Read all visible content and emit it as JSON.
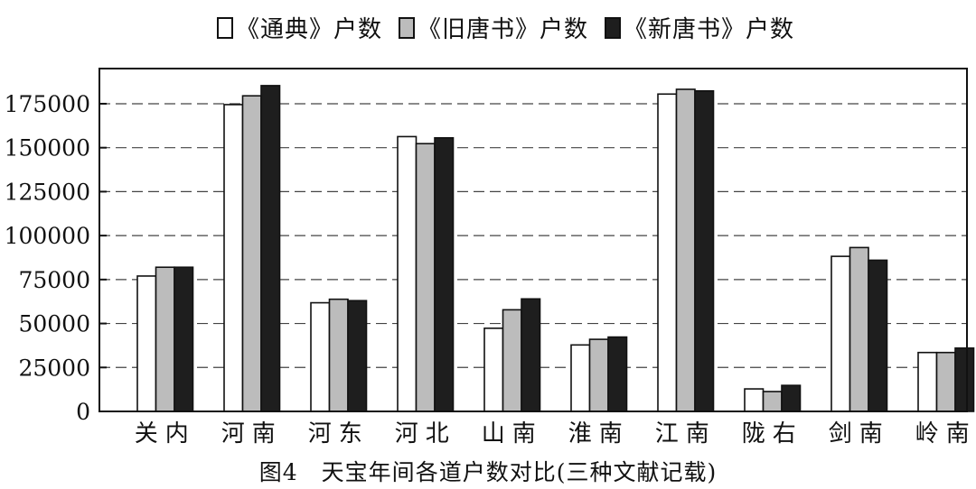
{
  "chart_data": {
    "type": "bar",
    "title": "",
    "xlabel": "",
    "ylabel": "",
    "categories": [
      "关内",
      "河南",
      "河东",
      "河北",
      "山南",
      "淮南",
      "江南",
      "陇右",
      "剑南",
      "岭南"
    ],
    "series": [
      {
        "name": "《通典》户数",
        "color": "#ffffff",
        "values": [
          77000,
          174500,
          61800,
          156300,
          47300,
          37800,
          180500,
          12800,
          88200,
          33500
        ]
      },
      {
        "name": "《旧唐书》户数",
        "color": "#bcbcbc",
        "values": [
          82000,
          179500,
          63800,
          152300,
          57800,
          41000,
          183200,
          11300,
          93200,
          33500
        ]
      },
      {
        "name": "《新唐书》户数",
        "color": "#1e1e1e",
        "values": [
          82000,
          185300,
          63000,
          155600,
          64000,
          42300,
          182300,
          14800,
          86000,
          36000
        ]
      }
    ],
    "y_ticks": [
      "0",
      "25000",
      "50000",
      "75000",
      "100000",
      "125000",
      "150000",
      "175000"
    ],
    "ylim": [
      0,
      195000
    ],
    "grid": true,
    "grid_style": "dashed",
    "legend_position": "top",
    "caption": "图4　天宝年间各道户数对比(三种文献记载)"
  }
}
